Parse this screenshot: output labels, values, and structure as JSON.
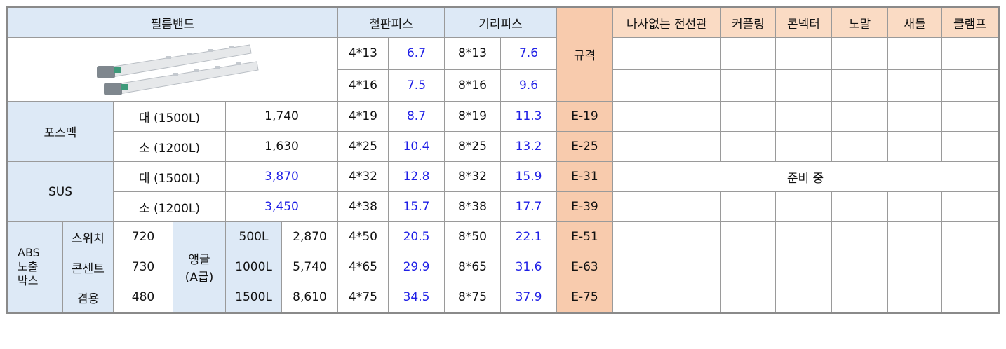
{
  "header": {
    "film_band": "필름밴드",
    "steel_piece": "철판피스",
    "giri_piece": "기리피스",
    "spec": "규격",
    "products": [
      "나사없는 전선관",
      "커플링",
      "콘넥터",
      "노말",
      "새들",
      "클램프"
    ]
  },
  "film_band": {
    "groups": [
      {
        "name": "포스맥",
        "rows": [
          {
            "size": "대 (1500L)",
            "price": "1,740"
          },
          {
            "size": "소 (1200L)",
            "price": "1,630"
          }
        ]
      },
      {
        "name": "SUS",
        "rows": [
          {
            "size": "대 (1500L)",
            "price": "3,870"
          },
          {
            "size": "소 (1200L)",
            "price": "3,450"
          }
        ]
      }
    ],
    "abs": {
      "name": [
        "ABS",
        "노출",
        "박스"
      ],
      "items": [
        {
          "name": "스위치",
          "price": 720
        },
        {
          "name": "콘센트",
          "price": 730
        },
        {
          "name": "겸용",
          "price": 480
        }
      ]
    },
    "angle": {
      "name": [
        "앵글",
        "(A급)"
      ],
      "items": [
        {
          "length": "500L",
          "price": "2,870"
        },
        {
          "length": "1000L",
          "price": "5,740"
        },
        {
          "length": "1500L",
          "price": "8,610"
        }
      ]
    }
  },
  "pieces": [
    {
      "steel_size": "4*13",
      "steel_value": 6.7,
      "giri_size": "8*13",
      "giri_value": 7.6
    },
    {
      "steel_size": "4*16",
      "steel_value": 7.5,
      "giri_size": "8*16",
      "giri_value": 9.6
    },
    {
      "steel_size": "4*19",
      "steel_value": 8.7,
      "giri_size": "8*19",
      "giri_value": 11.3,
      "spec": "E-19"
    },
    {
      "steel_size": "4*25",
      "steel_value": 10.4,
      "giri_size": "8*25",
      "giri_value": 13.2,
      "spec": "E-25"
    },
    {
      "steel_size": "4*32",
      "steel_value": 12.8,
      "giri_size": "8*32",
      "giri_value": 15.9,
      "spec": "E-31"
    },
    {
      "steel_size": "4*38",
      "steel_value": 15.7,
      "giri_size": "8*38",
      "giri_value": 17.7,
      "spec": "E-39"
    },
    {
      "steel_size": "4*50",
      "steel_value": 20.5,
      "giri_size": "8*50",
      "giri_value": 22.1,
      "spec": "E-51"
    },
    {
      "steel_size": "4*65",
      "steel_value": 29.9,
      "giri_size": "8*65",
      "giri_value": 31.6,
      "spec": "E-63"
    },
    {
      "steel_size": "4*75",
      "steel_value": 34.5,
      "giri_size": "8*75",
      "giri_value": 37.9,
      "spec": "E-75"
    }
  ],
  "status": "준비 중"
}
